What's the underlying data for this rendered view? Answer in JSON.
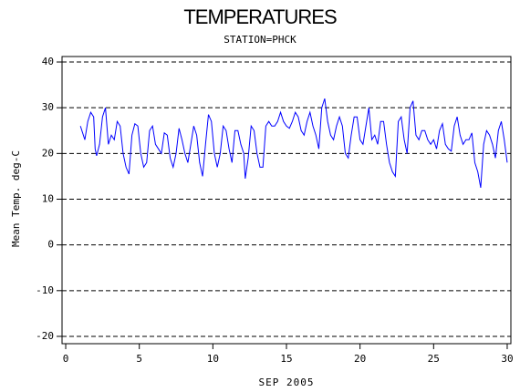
{
  "chart_data": {
    "type": "line",
    "title": "TEMPERATURES",
    "subtitle": "STATION=PHCK",
    "x_label": "SEP 2005",
    "y_label": "Mean Temp. deg-C",
    "x": [
      1.0,
      1.3,
      1.5,
      1.7,
      1.9,
      2.0,
      2.1,
      2.3,
      2.5,
      2.7,
      2.9,
      3.1,
      3.3,
      3.5,
      3.7,
      3.9,
      4.1,
      4.3,
      4.5,
      4.7,
      4.9,
      5.1,
      5.3,
      5.5,
      5.7,
      5.9,
      6.1,
      6.3,
      6.5,
      6.7,
      6.9,
      7.1,
      7.3,
      7.5,
      7.7,
      7.9,
      8.1,
      8.3,
      8.5,
      8.7,
      8.9,
      9.1,
      9.3,
      9.5,
      9.7,
      9.9,
      10.1,
      10.3,
      10.5,
      10.7,
      10.9,
      11.1,
      11.3,
      11.5,
      11.7,
      11.9,
      12.1,
      12.2,
      12.4,
      12.6,
      12.8,
      13.0,
      13.2,
      13.4,
      13.6,
      13.8,
      14.0,
      14.2,
      14.4,
      14.6,
      14.8,
      15.0,
      15.2,
      15.4,
      15.6,
      15.8,
      16.0,
      16.2,
      16.4,
      16.6,
      16.8,
      17.0,
      17.2,
      17.4,
      17.6,
      17.8,
      18.0,
      18.2,
      18.4,
      18.6,
      18.8,
      19.0,
      19.2,
      19.4,
      19.6,
      19.8,
      20.0,
      20.2,
      20.4,
      20.6,
      20.8,
      21.0,
      21.2,
      21.4,
      21.6,
      21.8,
      22.0,
      22.2,
      22.4,
      22.6,
      22.8,
      23.0,
      23.2,
      23.4,
      23.6,
      23.8,
      24.0,
      24.2,
      24.4,
      24.6,
      24.8,
      25.0,
      25.2,
      25.4,
      25.6,
      25.8,
      26.0,
      26.2,
      26.4,
      26.6,
      26.8,
      27.0,
      27.2,
      27.4,
      27.6,
      27.8,
      28.0,
      28.2,
      28.4,
      28.6,
      28.8,
      29.0,
      29.2,
      29.4,
      29.6,
      29.8,
      30.0
    ],
    "values": [
      26,
      23,
      27,
      29,
      28,
      21,
      19.5,
      22,
      28,
      30,
      22,
      24,
      23,
      27,
      26,
      20,
      17,
      15.5,
      24,
      26.5,
      26,
      20,
      17,
      18,
      25,
      26,
      22,
      21,
      20,
      24.5,
      24,
      19,
      17,
      20,
      25.5,
      23,
      20,
      18,
      22,
      26,
      24,
      18,
      15,
      22,
      28.5,
      27,
      20,
      17,
      20,
      26,
      25,
      21,
      18,
      25,
      25,
      22,
      20,
      14.5,
      19,
      26,
      25,
      20,
      17,
      17,
      26,
      27,
      26,
      26,
      27,
      29,
      27,
      26,
      25.5,
      27,
      29,
      28,
      25,
      24,
      27,
      29,
      26,
      24,
      21,
      30,
      32,
      27,
      24,
      23,
      26,
      28,
      26,
      20,
      19,
      24,
      28,
      28,
      23,
      22,
      26,
      30,
      23,
      24,
      22,
      27,
      27,
      22,
      18,
      16,
      15,
      27,
      28,
      23,
      20,
      30,
      31.5,
      24,
      23,
      25,
      25,
      23,
      22,
      23,
      21,
      25,
      26.5,
      22,
      21,
      20.5,
      26,
      28,
      24,
      22,
      23,
      23,
      24.5,
      18,
      16,
      12.5,
      22,
      25,
      24,
      22,
      19,
      25,
      27,
      23,
      18
    ],
    "color": "#0000ff",
    "xlim": [
      -0.25,
      30.25
    ],
    "xticks": [
      0,
      5,
      10,
      15,
      20,
      25,
      30
    ],
    "ylim": [
      -21.6,
      41.2
    ],
    "yticks": [
      -20,
      -10,
      0,
      10,
      20,
      30,
      40
    ],
    "grid": true
  }
}
